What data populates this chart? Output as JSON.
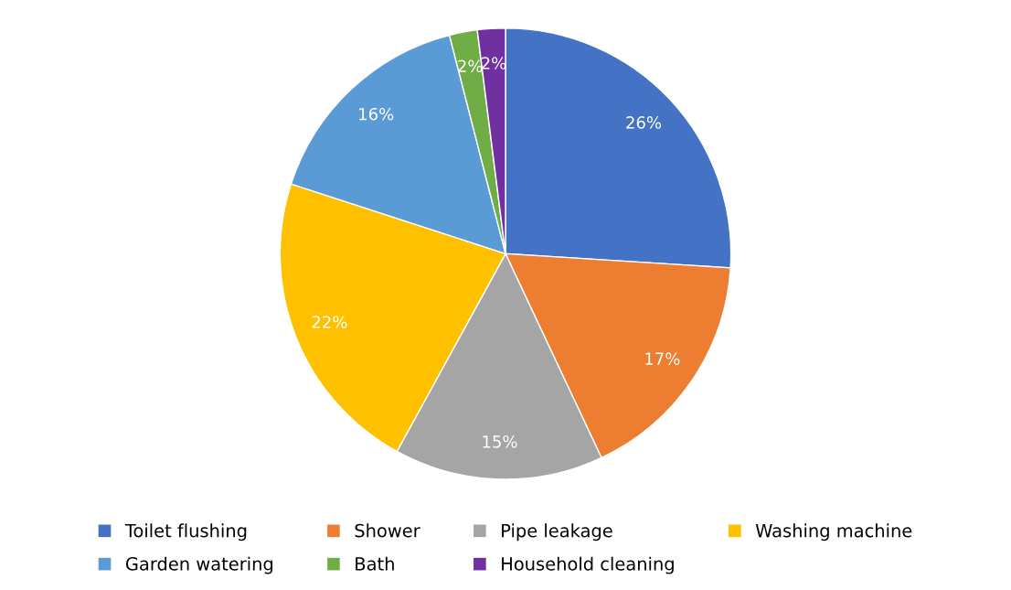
{
  "chart_data": {
    "type": "pie",
    "categories": [
      "Toilet flushing",
      "Shower",
      "Pipe leakage",
      "Washing machine",
      "Garden watering",
      "Bath",
      "Household cleaning"
    ],
    "values": [
      26,
      17,
      15,
      22,
      16,
      2,
      2
    ],
    "colors": [
      "#4472c4",
      "#ed7d31",
      "#a5a5a5",
      "#ffc000",
      "#5b9bd5",
      "#70ad47",
      "#7030a0"
    ],
    "value_labels": [
      "26%",
      "17%",
      "15%",
      "22%",
      "16%",
      "2%",
      "2%"
    ],
    "legend": "bottom"
  }
}
